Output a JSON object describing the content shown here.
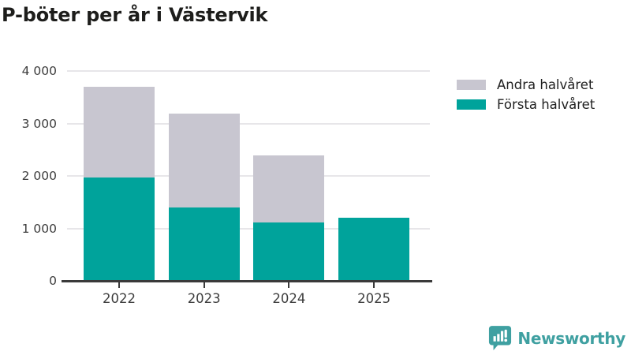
{
  "title": "P-böter per år i Västervik",
  "chart_data": {
    "type": "bar",
    "stacked": true,
    "title": "P-böter per år i Västervik",
    "xlabel": "",
    "ylabel": "",
    "categories": [
      "2022",
      "2023",
      "2024",
      "2025"
    ],
    "series": [
      {
        "name": "Första halvåret",
        "color": "#00a39b",
        "values": [
          1975,
          1400,
          1110,
          1205
        ]
      },
      {
        "name": "Andra halvåret",
        "color": "#c8c6d0",
        "values": [
          1725,
          1785,
          1275,
          0
        ]
      }
    ],
    "ylim": [
      0,
      4000
    ],
    "yticks": [
      0,
      1000,
      2000,
      3000,
      4000
    ],
    "ytick_labels": [
      "0",
      "1 000",
      "2 000",
      "3 000",
      "4 000"
    ],
    "grid": true,
    "legend_position": "top-right"
  },
  "legend": {
    "items": [
      {
        "label": "Andra halvåret",
        "color": "#c8c6d0"
      },
      {
        "label": "Första halvåret",
        "color": "#00a39b"
      }
    ]
  },
  "branding": {
    "name": "Newsworthy",
    "color": "#3fa0a1"
  }
}
